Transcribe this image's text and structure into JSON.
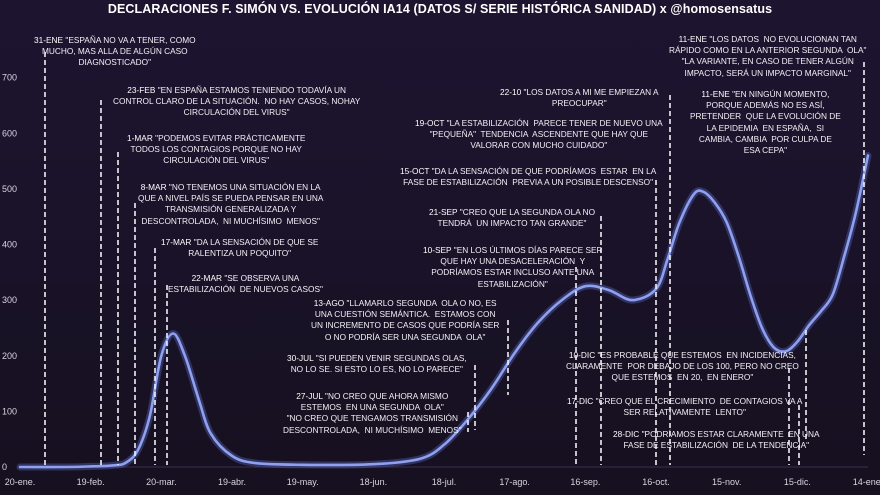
{
  "chart_data": {
    "type": "line",
    "title": "DECLARACIONES F. SIMÓN VS. EVOLUCIÓN IA14 (DATOS S/ SERIE HISTÓRICA SANIDAD)  x @homosensatus",
    "xlabel": "",
    "ylabel": "",
    "ylim": [
      0,
      800
    ],
    "y_ticks": [
      "0",
      "100",
      "200",
      "300",
      "400",
      "500",
      "600",
      "700"
    ],
    "x_ticks": [
      "20-ene.",
      "19-feb.",
      "20-mar.",
      "19-abr.",
      "19-may.",
      "18-jun.",
      "18-jul.",
      "17-ago.",
      "16-sep.",
      "16-oct.",
      "15-nov.",
      "15-dic.",
      "14-ene."
    ],
    "grid": "vertical dashed lines at statement dates",
    "line_color": "#8fa0ee",
    "series": [
      {
        "name": "",
        "x": [
          "20-ene",
          "09-feb",
          "19-feb",
          "29-feb",
          "05-mar",
          "10-mar",
          "15-mar",
          "20-mar",
          "25-mar",
          "30-mar",
          "05-abr",
          "10-abr",
          "19-abr",
          "29-abr",
          "19-may",
          "18-jun",
          "08-jul",
          "18-jul",
          "28-jul",
          "07-ago",
          "17-ago",
          "27-ago",
          "06-sep",
          "16-sep",
          "26-sep",
          "06-oct",
          "16-oct",
          "21-oct",
          "26-oct",
          "01-nov",
          "05-nov",
          "10-nov",
          "15-nov",
          "20-nov",
          "25-nov",
          "30-nov",
          "05-dic",
          "10-dic",
          "15-dic",
          "20-dic",
          "25-dic",
          "30-dic",
          "04-ene",
          "09-ene",
          "14-ene"
        ],
        "values": [
          0,
          0,
          1,
          3,
          8,
          30,
          90,
          200,
          240,
          200,
          120,
          60,
          20,
          7,
          4,
          5,
          15,
          40,
          85,
          140,
          205,
          260,
          300,
          325,
          318,
          300,
          320,
          375,
          440,
          490,
          495,
          475,
          440,
          380,
          310,
          250,
          215,
          208,
          225,
          255,
          280,
          310,
          380,
          460,
          560
        ]
      }
    ]
  },
  "annotations": [
    {
      "date": "31-ENE",
      "text": "\"ESPAÑA NO VA A TENER, COMO\nMUCHO, MAS ALLA DE ALGÚN CASO\nDIAGNOSTICADO\""
    },
    {
      "date": "23-FEB",
      "text": "\"EN ESPAÑA ESTAMOS TENIENDO TODAVÍA UN\nCONTROL CLARO DE LA SITUACIÓN.  NO HAY CASOS, NOHAY\nCIRCULACIÓN DEL VIRUS\""
    },
    {
      "date": "1-MAR",
      "text": "\"PODEMOS EVITAR PRÁCTICAMENTE\nTODOS LOS CONTAGIOS PORQUE NO HAY\nCIRCULACIÓN DEL VIRUS\""
    },
    {
      "date": "8-MAR",
      "text": "\"NO TENEMOS UNA SITUACIÓN EN LA\nQUE A NIVEL PAÍS SE PUEDA PENSAR EN UNA\nTRANSMISIÓN GENERALIZADA Y\nDESCONTROLADA,  NI MUCHÍSIMO  MENOS\""
    },
    {
      "date": "17-MAR",
      "text": "\"DA LA SENSACIÓN DE QUE SE\nRALENTIZA UN POQUITO\""
    },
    {
      "date": "22-MAR",
      "text": "\"SE OBSERVA UNA\nESTABILIZACIÓN  DE NUEVOS CASOS\""
    },
    {
      "date": "13-AGO",
      "text": "\"LLAMARLO SEGUNDA  OLA O NO, ES\nUNA CUESTIÓN SEMÁNTICA.  ESTAMOS CON\nUN INCREMENTO DE CASOS QUE PODRÍA SER\nO NO PODRÍA SER UNA SEGUNDA  OLA\""
    },
    {
      "date": "30-JUL",
      "text": "\"SI PUEDEN VENIR SEGUNDAS OLAS,\nNO LO SE. SI ESTO LO ES, NO LO PARECE\""
    },
    {
      "date": "27-JUL",
      "text": "\"NO CREO QUE AHORA MISMO\nESTEMOS  EN UNA SEGUNDA  OLA\"\n\"NO CREO QUE TENGAMOS TRANSMISIÓN\nDESCONTROLADA,  NI MUCHÍSIMO  MENOS\""
    },
    {
      "date": "22-10",
      "text": "\"LOS DATOS A MI ME EMPIEZAN A\nPREOCUPAR\""
    },
    {
      "date": "19-OCT",
      "text": "\"LA ESTABILIZACIÓN  PARECE TENER DE NUEVO UNA\n\"PEQUEÑA\"  TENDENCIA  ASCENDENTE QUE HAY QUE\nVALORAR CON MUCHO CUIDADO\""
    },
    {
      "date": "15-OCT",
      "text": "\"DA LA SENSACIÓN DE QUE PODRÍAMOS  ESTAR  EN LA\nFASE DE ESTABILIZACIÓN  PREVIA A UN POSIBLE DESCENSO\""
    },
    {
      "date": "21-SEP",
      "text": "\"CREO QUE LA SEGUNDA OLA NO\nTENDRÁ  UN IMPACTO TAN GRANDE\""
    },
    {
      "date": "10-SEP",
      "text": "\"EN LOS ÚLTIMOS DÍAS PARECE SER\nQUE HAY UNA DESACELERACIÓN  Y\nPODRÍAMOS ESTAR INCLUSO ANTE UNA\nESTABILIZACIÓN\""
    },
    {
      "date": "11-ENE",
      "text": "\"LOS DATOS  NO EVOLUCIONAN TAN\nRÁPIDO COMO EN LA ANTERIOR SEGUNDA  OLA\"\n\"LA VARIANTE, EN CASO DE TENER ALGÚN\nIMPACTO, SERÁ UN IMPACTO MARGINAL\""
    },
    {
      "date": "11-ENE",
      "text": "\"EN NINGÚN MOMENTO,\nPORQUE ADEMÁS NO ES ASÍ,\nPRETENDER  QUE LA EVOLUCIÓN DE\nLA EPIDEMIA  EN ESPAÑA,  SI\nCAMBIA, CAMBIA  POR CULPA DE\nESA CEPA\""
    },
    {
      "date": "10-DIC",
      "text": "\"ES PROBABLE QUE ESTEMOS  EN INCIDENCIAS,\nCLARAMENTE  POR DEBAJO DE LOS 100, PERO NO CREO\nQUE ESTEMOS  EN 20,  EN ENERO\""
    },
    {
      "date": "17-DIC",
      "text": "\"CREO QUE EL CRECIMIENTO  DE CONTAGIOS VA A\nSER RELATIVAMENTE  LENTO\""
    },
    {
      "date": "28-DIC",
      "text": "\"PODRÍAMOS ESTAR CLARAMENTE  EN UNA\nFASE DE ESTABILIZACIÓN  DE LA TENDENCIA\""
    }
  ]
}
